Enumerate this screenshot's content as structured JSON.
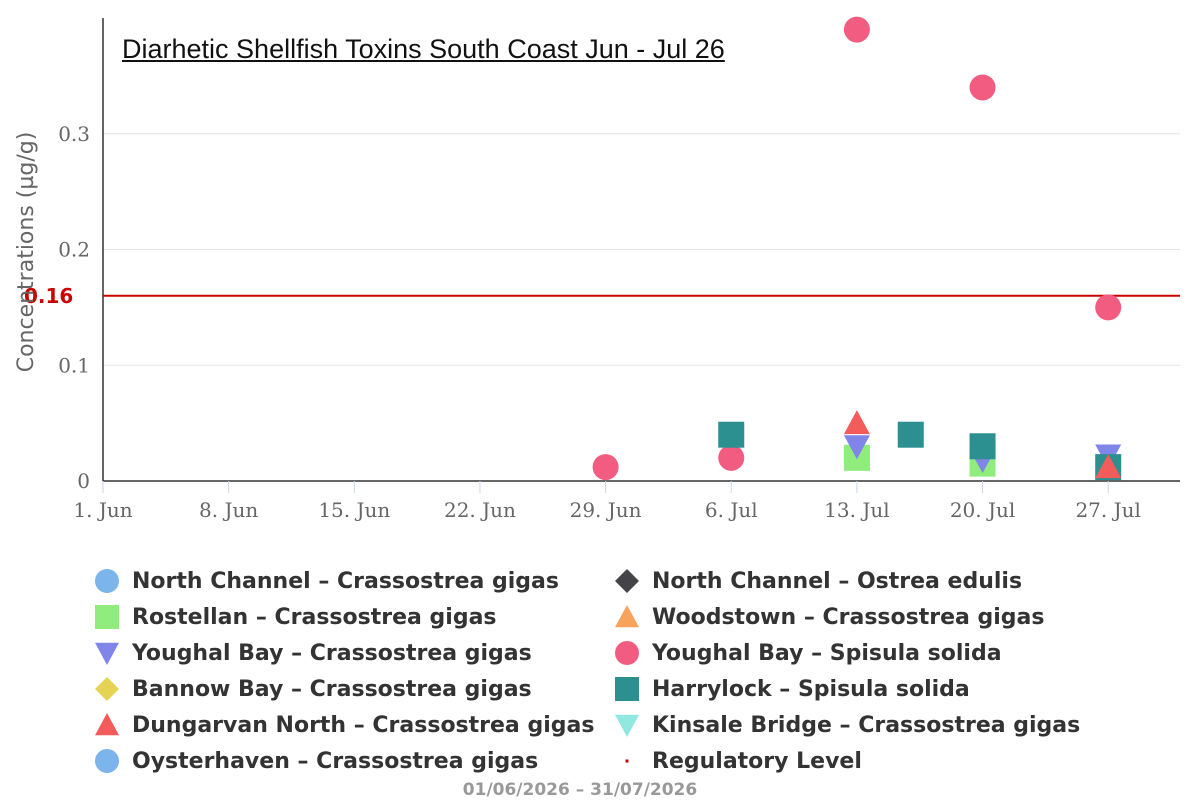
{
  "chart_data": {
    "type": "scatter",
    "title": "Diarhetic Shellfish Toxins South Coast Jun - Jul 26",
    "ylabel": "Concentrations (µg/g)",
    "xlabel": "",
    "x_range": [
      "2026-06-01",
      "2026-07-31"
    ],
    "ylim": [
      0,
      0.4
    ],
    "y_ticks": [
      "0",
      "0.1",
      "0.2",
      "0.3"
    ],
    "x_ticks": [
      {
        "date": "2026-06-01",
        "label": "1. Jun"
      },
      {
        "date": "2026-06-08",
        "label": "8. Jun"
      },
      {
        "date": "2026-06-15",
        "label": "15. Jun"
      },
      {
        "date": "2026-06-22",
        "label": "22. Jun"
      },
      {
        "date": "2026-06-29",
        "label": "29. Jun"
      },
      {
        "date": "2026-07-06",
        "label": "6. Jul"
      },
      {
        "date": "2026-07-13",
        "label": "13. Jul"
      },
      {
        "date": "2026-07-20",
        "label": "20. Jul"
      },
      {
        "date": "2026-07-27",
        "label": "27. Jul"
      }
    ],
    "grid": true,
    "regulatory_level": {
      "value": 0.16,
      "label": "0.16",
      "color": "#cc0000"
    },
    "series": [
      {
        "name": "North Channel – Crassostrea gigas",
        "symbol": "circle",
        "color": "#7cb5ec",
        "points": []
      },
      {
        "name": "North Channel – Ostrea edulis",
        "symbol": "diamond",
        "color": "#434348",
        "points": []
      },
      {
        "name": "Rostellan – Crassostrea gigas",
        "symbol": "square",
        "color": "#90ed7d",
        "points": [
          {
            "x": "2026-07-13",
            "y": 0.02
          },
          {
            "x": "2026-07-20",
            "y": 0.015
          }
        ]
      },
      {
        "name": "Woodstown – Crassostrea gigas",
        "symbol": "triangle",
        "color": "#f7a35c",
        "points": []
      },
      {
        "name": "Youghal Bay – Crassostrea gigas",
        "symbol": "triangle-down",
        "color": "#8085e9",
        "points": [
          {
            "x": "2026-07-13",
            "y": 0.03
          },
          {
            "x": "2026-07-20",
            "y": 0.018
          },
          {
            "x": "2026-07-27",
            "y": 0.022
          }
        ]
      },
      {
        "name": "Youghal Bay – Spisula solida",
        "symbol": "circle",
        "color": "#f15c80",
        "points": [
          {
            "x": "2026-06-29",
            "y": 0.012
          },
          {
            "x": "2026-07-06",
            "y": 0.02
          },
          {
            "x": "2026-07-13",
            "y": 0.39
          },
          {
            "x": "2026-07-20",
            "y": 0.34
          },
          {
            "x": "2026-07-27",
            "y": 0.15
          }
        ]
      },
      {
        "name": "Bannow Bay – Crassostrea gigas",
        "symbol": "diamond",
        "color": "#e4d354",
        "points": []
      },
      {
        "name": "Harrylock – Spisula solida",
        "symbol": "square",
        "color": "#2b908f",
        "points": [
          {
            "x": "2026-07-06",
            "y": 0.04
          },
          {
            "x": "2026-07-16",
            "y": 0.04
          },
          {
            "x": "2026-07-20",
            "y": 0.03
          },
          {
            "x": "2026-07-27",
            "y": 0.012
          }
        ]
      },
      {
        "name": "Dungarvan North – Crassostrea gigas",
        "symbol": "triangle",
        "color": "#f45b5b",
        "points": [
          {
            "x": "2026-07-13",
            "y": 0.05
          },
          {
            "x": "2026-07-27",
            "y": 0.012
          }
        ]
      },
      {
        "name": "Kinsale Bridge – Crassostrea gigas",
        "symbol": "triangle-down",
        "color": "#91e8e1",
        "points": []
      },
      {
        "name": "Oysterhaven – Crassostrea gigas",
        "symbol": "circle",
        "color": "#7cb5ec",
        "points": []
      }
    ],
    "legend_items": [
      {
        "label": "North Channel – Crassostrea gigas",
        "symbol": "circle",
        "color": "#7cb5ec"
      },
      {
        "label": "North Channel – Ostrea edulis",
        "symbol": "diamond",
        "color": "#434348"
      },
      {
        "label": "Rostellan – Crassostrea gigas",
        "symbol": "square",
        "color": "#90ed7d"
      },
      {
        "label": "Woodstown – Crassostrea gigas",
        "symbol": "triangle",
        "color": "#f7a35c"
      },
      {
        "label": "Youghal Bay – Crassostrea gigas",
        "symbol": "triangle-down",
        "color": "#8085e9"
      },
      {
        "label": "Youghal Bay – Spisula solida",
        "symbol": "circle",
        "color": "#f15c80"
      },
      {
        "label": "Bannow Bay – Crassostrea gigas",
        "symbol": "diamond",
        "color": "#e4d354"
      },
      {
        "label": "Harrylock – Spisula solida",
        "symbol": "square",
        "color": "#2b908f"
      },
      {
        "label": "Dungarvan North – Crassostrea gigas",
        "symbol": "triangle",
        "color": "#f45b5b"
      },
      {
        "label": "Kinsale Bridge – Crassostrea gigas",
        "symbol": "triangle-down",
        "color": "#91e8e1"
      },
      {
        "label": "Oysterhaven – Crassostrea gigas",
        "symbol": "circle",
        "color": "#7cb5ec"
      },
      {
        "label": "Regulatory Level",
        "symbol": "dot",
        "color": "#cc0000"
      }
    ],
    "date_range": "01/06/2026 – 31/07/2026"
  }
}
